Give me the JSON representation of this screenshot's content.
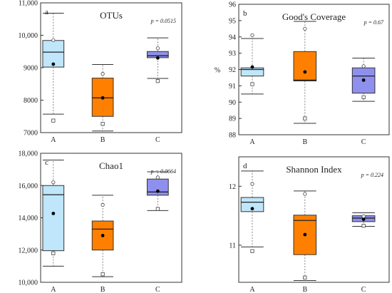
{
  "chart_data": [
    {
      "type": "box",
      "panel_label": "a",
      "title": "OTUs",
      "pvalue_text": "p = 0.0515",
      "ylabel": "",
      "ylim": [
        7000,
        11000
      ],
      "yticks": [
        7000,
        8000,
        9000,
        10000,
        11000
      ],
      "ytick_labels": [
        "7000",
        "8000",
        "9000",
        "10,000",
        "11,000"
      ],
      "categories": [
        "A",
        "B",
        "C"
      ],
      "colors": [
        "#bfe6fb",
        "#ff8000",
        "#8f90ee"
      ],
      "boxes": [
        {
          "whisker_low": 7570,
          "q1": 9020,
          "median": 9480,
          "q3": 9840,
          "whisker_high": 10680,
          "mean": 9110,
          "p_low": 7370,
          "p_high": 9850
        },
        {
          "whisker_low": 7050,
          "q1": 7500,
          "median": 8070,
          "q3": 8680,
          "whisker_high": 9100,
          "mean": 8070,
          "p_low": 7270,
          "p_high": 8810
        },
        {
          "whisker_low": 8670,
          "q1": 9310,
          "median": 9370,
          "q3": 9500,
          "whisker_high": 9920,
          "mean": 9300,
          "p_low": 8590,
          "p_high": 9600
        }
      ]
    },
    {
      "type": "box",
      "panel_label": "b",
      "title": "Good's Coverage",
      "pvalue_text": "p = 0.67",
      "ylabel": "%",
      "ylim": [
        88,
        96
      ],
      "yticks": [
        88,
        89,
        90,
        91,
        92,
        93,
        94,
        95,
        96
      ],
      "ytick_labels": [
        "88",
        "89",
        "90",
        "91",
        "92",
        "93",
        "94",
        "95",
        "96"
      ],
      "categories": [
        "A",
        "B",
        "C"
      ],
      "colors": [
        "#bfe6fb",
        "#ff8000",
        "#8f90ee"
      ],
      "boxes": [
        {
          "whisker_low": 90.5,
          "q1": 91.6,
          "median": 92.0,
          "q3": 92.1,
          "whisker_high": 93.9,
          "mean": 92.15,
          "p_low": 91.1,
          "p_high": 94.1
        },
        {
          "whisker_low": 88.7,
          "q1": 91.3,
          "median": 91.35,
          "q3": 93.1,
          "whisker_high": 94.95,
          "mean": 91.85,
          "p_low": 89.0,
          "p_high": 94.5
        },
        {
          "whisker_low": 90.05,
          "q1": 90.55,
          "median": 91.6,
          "q3": 92.1,
          "whisker_high": 92.7,
          "mean": 91.35,
          "p_low": 90.3,
          "p_high": 92.2
        }
      ]
    },
    {
      "type": "box",
      "panel_label": "c",
      "title": "Chao1",
      "pvalue_text": "p = 0.0664",
      "ylabel": "",
      "ylim": [
        10000,
        18000
      ],
      "yticks": [
        10000,
        12000,
        14000,
        16000,
        18000
      ],
      "ytick_labels": [
        "10,000",
        "12,000",
        "14,000",
        "16,000",
        "18,000"
      ],
      "categories": [
        "A",
        "B",
        "C"
      ],
      "colors": [
        "#bfe6fb",
        "#ff8000",
        "#8f90ee"
      ],
      "boxes": [
        {
          "whisker_low": 11000,
          "q1": 11960,
          "median": 15430,
          "q3": 16000,
          "whisker_high": 17580,
          "mean": 14270,
          "p_low": 11800,
          "p_high": 16200
        },
        {
          "whisker_low": 10350,
          "q1": 12000,
          "median": 13300,
          "q3": 13800,
          "whisker_high": 15400,
          "mean": 12900,
          "p_low": 10500,
          "p_high": 14800
        },
        {
          "whisker_low": 14450,
          "q1": 15400,
          "median": 15600,
          "q3": 16400,
          "whisker_high": 16850,
          "mean": 15650,
          "p_low": 14550,
          "p_high": 16500
        }
      ]
    },
    {
      "type": "box",
      "panel_label": "d",
      "title": "Shannon Index",
      "pvalue_text": "p = 0.224",
      "ylabel": "",
      "ylim": [
        10.37,
        12.5
      ],
      "yticks": [
        11,
        12
      ],
      "ytick_labels": [
        "11",
        "12"
      ],
      "categories": [
        "A",
        "B",
        "C"
      ],
      "colors": [
        "#bfe6fb",
        "#ff8000",
        "#8f90ee"
      ],
      "boxes": [
        {
          "whisker_low": 10.97,
          "q1": 11.57,
          "median": 11.73,
          "q3": 11.81,
          "whisker_high": 12.26,
          "mean": 11.62,
          "p_low": 10.9,
          "p_high": 12.04
        },
        {
          "whisker_low": 10.4,
          "q1": 10.84,
          "median": 11.42,
          "q3": 11.51,
          "whisker_high": 11.92,
          "mean": 11.18,
          "p_low": 10.45,
          "p_high": 11.87
        },
        {
          "whisker_low": 11.32,
          "q1": 11.4,
          "median": 11.46,
          "q3": 11.5,
          "whisker_high": 11.55,
          "mean": 11.44,
          "p_low": 11.33,
          "p_high": 11.49
        }
      ]
    }
  ]
}
